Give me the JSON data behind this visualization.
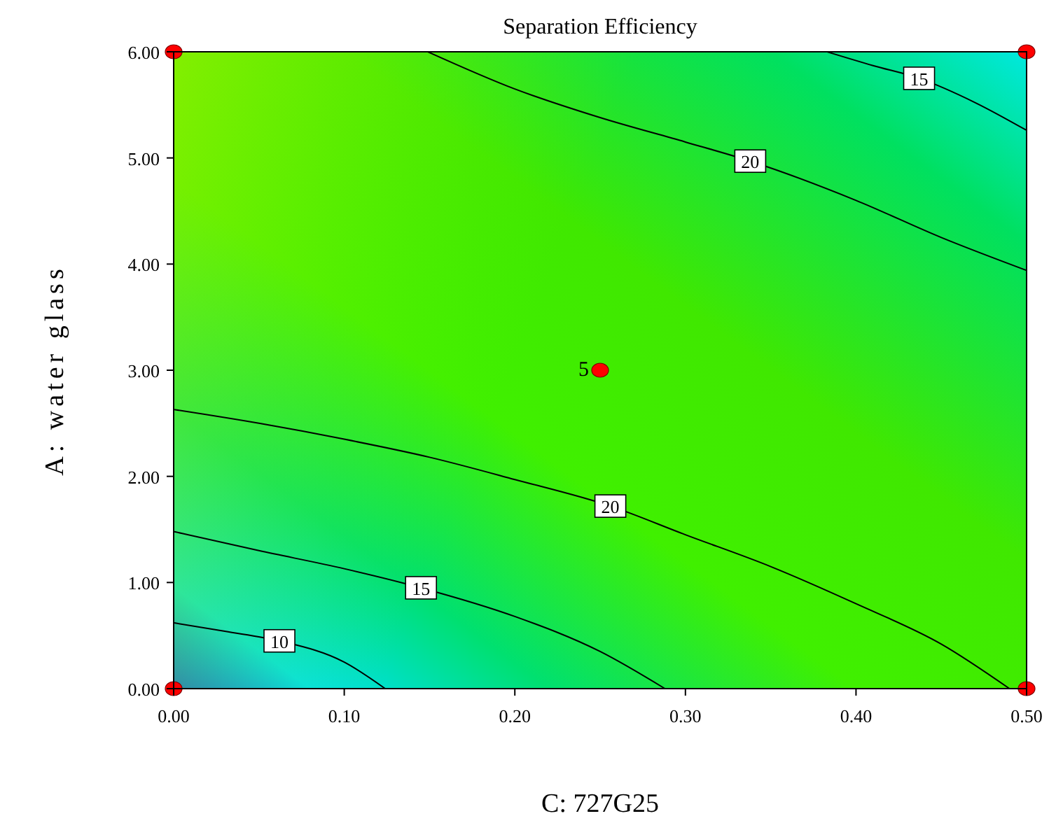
{
  "chart_data": {
    "type": "line",
    "title": "Separation Efficiency",
    "xlabel": "C: 727G25",
    "ylabel": "A: water glass",
    "xlim": [
      0,
      0.5
    ],
    "ylim": [
      0,
      6
    ],
    "xticks": [
      {
        "value": 0,
        "label": "0.00"
      },
      {
        "value": 0.1,
        "label": "0.10"
      },
      {
        "value": 0.2,
        "label": "0.20"
      },
      {
        "value": 0.3,
        "label": "0.30"
      },
      {
        "value": 0.4,
        "label": "0.40"
      },
      {
        "value": 0.5,
        "label": "0.50"
      }
    ],
    "yticks": [
      {
        "value": 0,
        "label": "0.00"
      },
      {
        "value": 1,
        "label": "1.00"
      },
      {
        "value": 2,
        "label": "2.00"
      },
      {
        "value": 3,
        "label": "3.00"
      },
      {
        "value": 4,
        "label": "4.00"
      },
      {
        "value": 5,
        "label": "5.00"
      },
      {
        "value": 6,
        "label": "6.00"
      }
    ],
    "grid": false,
    "marker": "none",
    "line_style": "solid",
    "series": [
      {
        "name": "10",
        "color": "#000000",
        "x": [
          0,
          0.03,
          0.062,
          0.1,
          0.124
        ],
        "values": [
          0.62,
          0.54,
          0.45,
          0.25,
          0
        ]
      },
      {
        "name": "15",
        "color": "#000000",
        "x": [
          0,
          0.05,
          0.1,
          0.145,
          0.2,
          0.25,
          0.288
        ],
        "values": [
          1.48,
          1.3,
          1.13,
          0.95,
          0.68,
          0.35,
          0
        ]
      },
      {
        "name": "20",
        "color": "#000000",
        "x": [
          0,
          0.05,
          0.1,
          0.15,
          0.2,
          0.256,
          0.3,
          0.35,
          0.4,
          0.45,
          0.49
        ],
        "values": [
          2.63,
          2.5,
          2.35,
          2.18,
          1.97,
          1.72,
          1.45,
          1.15,
          0.8,
          0.42,
          0
        ]
      },
      {
        "name": "20",
        "color": "#000000",
        "x": [
          0.149,
          0.2,
          0.25,
          0.3,
          0.338,
          0.4,
          0.45,
          0.5
        ],
        "values": [
          6,
          5.65,
          5.38,
          5.15,
          4.97,
          4.6,
          4.25,
          3.94
        ]
      },
      {
        "name": "15",
        "color": "#000000",
        "x": [
          0.383,
          0.41,
          0.437,
          0.47,
          0.5
        ],
        "values": [
          6,
          5.87,
          5.75,
          5.52,
          5.26
        ]
      },
      {
        "type": "scatter",
        "marker": "circle",
        "color": "#ff0000",
        "x": [
          0,
          0,
          0.5,
          0.5,
          0.25
        ],
        "values": [
          0,
          6,
          0,
          6,
          3
        ]
      }
    ],
    "annotations": [
      {
        "text": "5",
        "x": 0.25,
        "y": 3
      }
    ]
  }
}
